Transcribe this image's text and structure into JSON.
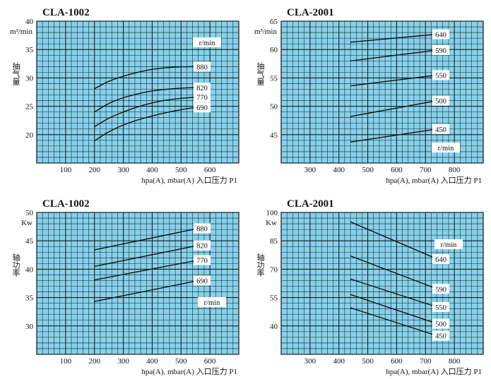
{
  "colors": {
    "plot_background": "#86d2ec",
    "grid": "#1d1d1d",
    "curve": "#111111",
    "label_box": "#ffffff"
  },
  "chart_data": [
    {
      "type": "line",
      "title": "CLA-1002",
      "ylabel": "抽气量",
      "yunit": "m³/min",
      "xlabel": "hpa(A), mbar(A) 入口压力 P1",
      "xlim": [
        0,
        700
      ],
      "ylim": [
        15,
        40
      ],
      "xticks": [
        100,
        200,
        300,
        400,
        500,
        600
      ],
      "yticks": [
        20,
        25,
        30,
        35,
        40
      ],
      "grid": true,
      "legend_title": "r/min",
      "series": [
        {
          "name": "880",
          "x": [
            200,
            250,
            300,
            350,
            400,
            450,
            500,
            550
          ],
          "y": [
            28.1,
            29.4,
            30.3,
            31.0,
            31.5,
            31.8,
            31.95,
            32.0
          ]
        },
        {
          "name": "820",
          "x": [
            200,
            250,
            300,
            350,
            400,
            450,
            500,
            550
          ],
          "y": [
            24.0,
            25.5,
            26.5,
            27.2,
            27.7,
            28.0,
            28.2,
            28.3
          ]
        },
        {
          "name": "770",
          "x": [
            200,
            250,
            300,
            350,
            400,
            450,
            500,
            550
          ],
          "y": [
            21.4,
            22.9,
            24.0,
            24.9,
            25.6,
            26.1,
            26.4,
            26.6
          ]
        },
        {
          "name": "690",
          "x": [
            200,
            250,
            300,
            350,
            400,
            450,
            500,
            550
          ],
          "y": [
            18.9,
            20.5,
            21.7,
            22.6,
            23.3,
            23.9,
            24.4,
            24.8
          ]
        }
      ]
    },
    {
      "type": "line",
      "title": "CLA-2001",
      "ylabel": "抽气量",
      "yunit": "m³/min",
      "xlabel": "hpa(A), mbar(A) 入口压力 P1",
      "xlim": [
        200,
        900
      ],
      "ylim": [
        40,
        65
      ],
      "xticks": [
        300,
        400,
        500,
        600,
        700,
        800
      ],
      "yticks": [
        45,
        50,
        55,
        60,
        65
      ],
      "grid": true,
      "legend_title": "r/min",
      "series": [
        {
          "name": "640",
          "x": [
            440,
            740
          ],
          "y": [
            61.3,
            62.7
          ]
        },
        {
          "name": "590",
          "x": [
            440,
            740
          ],
          "y": [
            58.0,
            59.9
          ]
        },
        {
          "name": "550",
          "x": [
            440,
            740
          ],
          "y": [
            53.6,
            55.5
          ]
        },
        {
          "name": "500",
          "x": [
            440,
            740
          ],
          "y": [
            48.2,
            51.0
          ]
        },
        {
          "name": "450",
          "x": [
            440,
            740
          ],
          "y": [
            43.7,
            46.0
          ]
        }
      ]
    },
    {
      "type": "line",
      "title": "CLA-1002",
      "ylabel": "轴功率",
      "yunit": "Kw",
      "xlabel": "hpa(A), mbar(A) 入口压力 P1",
      "xlim": [
        0,
        700
      ],
      "ylim": [
        25,
        50
      ],
      "xticks": [
        100,
        200,
        300,
        400,
        500,
        600
      ],
      "yticks": [
        30,
        35,
        40,
        45,
        50
      ],
      "grid": true,
      "legend_title": "r/min",
      "series": [
        {
          "name": "880",
          "x": [
            200,
            560
          ],
          "y": [
            43.4,
            47.2
          ]
        },
        {
          "name": "820",
          "x": [
            200,
            560
          ],
          "y": [
            40.5,
            44.2
          ]
        },
        {
          "name": "770",
          "x": [
            200,
            560
          ],
          "y": [
            38.1,
            41.6
          ]
        },
        {
          "name": "690",
          "x": [
            200,
            560
          ],
          "y": [
            34.3,
            38.0
          ]
        }
      ]
    },
    {
      "type": "line",
      "title": "CLA-2001",
      "ylabel": "轴功率",
      "yunit": "Kw",
      "xlabel": "hpa(A), mbar(A) 入口压力 P1",
      "xlim": [
        200,
        900
      ],
      "ylim": [
        25,
        100
      ],
      "xticks": [
        300,
        400,
        500,
        600,
        700,
        800
      ],
      "yticks": [
        40,
        55,
        70,
        85,
        100
      ],
      "grid": true,
      "legend_title": "r/min",
      "series": [
        {
          "name": "640",
          "x": [
            440,
            740
          ],
          "y": [
            95.0,
            75.4
          ]
        },
        {
          "name": "590",
          "x": [
            440,
            740
          ],
          "y": [
            77.0,
            59.6
          ]
        },
        {
          "name": "550",
          "x": [
            440,
            740
          ],
          "y": [
            64.8,
            50.0
          ]
        },
        {
          "name": "500",
          "x": [
            440,
            740
          ],
          "y": [
            56.6,
            41.2
          ]
        },
        {
          "name": "450",
          "x": [
            440,
            740
          ],
          "y": [
            49.6,
            34.8
          ]
        }
      ]
    }
  ]
}
